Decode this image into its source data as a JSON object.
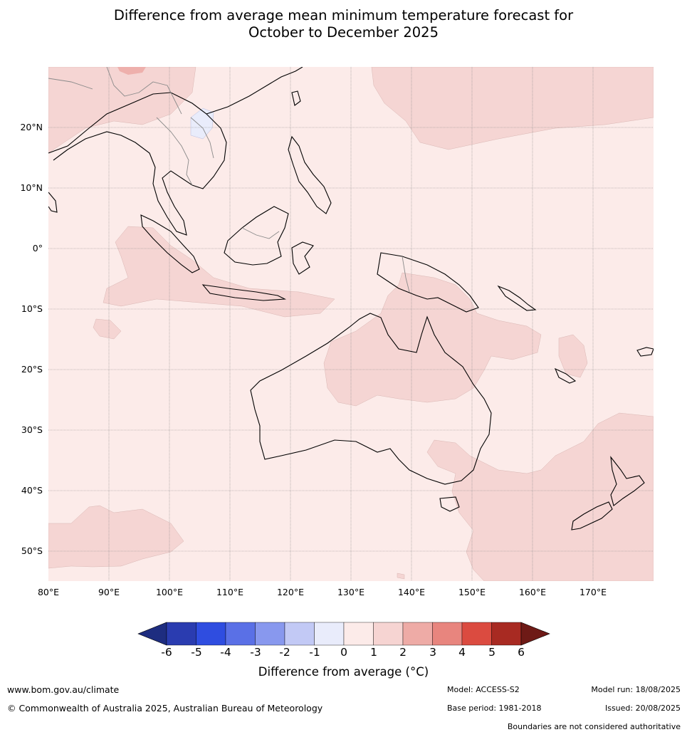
{
  "title_line1": "Difference from average mean minimum temperature forecast for",
  "title_line2": "October to December 2025",
  "lat_labels": [
    "20°N",
    "10°N",
    "0°",
    "10°S",
    "20°S",
    "30°S",
    "40°S",
    "50°S"
  ],
  "lon_labels": [
    "80°E",
    "90°E",
    "100°E",
    "110°E",
    "120°E",
    "130°E",
    "140°E",
    "150°E",
    "160°E",
    "170°E"
  ],
  "colorbar": {
    "ticks": [
      "-6",
      "-5",
      "-4",
      "-3",
      "-2",
      "-1",
      "0",
      "1",
      "2",
      "3",
      "4",
      "5",
      "6"
    ],
    "colors": [
      "#1e2d80",
      "#2a3cb0",
      "#2f4de0",
      "#5a70e6",
      "#8898ee",
      "#c2c9f5",
      "#e9ecfb",
      "#fcebe9",
      "#f6d4d2",
      "#eeaba6",
      "#e8857e",
      "#db4b40",
      "#a82a22",
      "#6e1a16"
    ],
    "label": "Difference from average (°C)"
  },
  "map_colors": {
    "ocean_background": "#fcebe9",
    "warm_region": "#f5d5d3",
    "warmer_region": "#eeb0ac",
    "cool_region": "#e9ecfb"
  },
  "footer": {
    "website": "www.bom.gov.au/climate",
    "copyright": "© Commonwealth of Australia 2025, Australian Bureau of Meteorology",
    "model": "Model: ACCESS-S2",
    "base_period": "Base period: 1981-2018",
    "model_run": "Model run: 18/08/2025",
    "issued": "Issued: 20/08/2025",
    "disclaimer": "Boundaries are not considered authoritative"
  }
}
